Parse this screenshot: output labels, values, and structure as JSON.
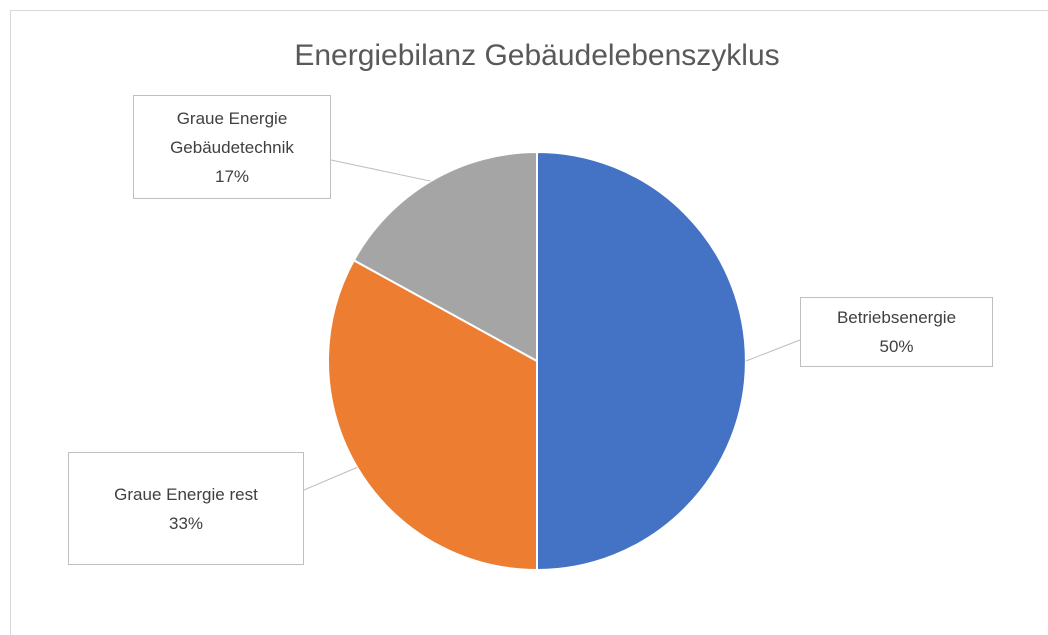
{
  "chart_data": {
    "type": "pie",
    "title": "Energiebilanz Gebäudelebenszyklus",
    "categories": [
      "Betriebsenergie",
      "Graue Energie rest",
      "Graue Energie Gebäudetechnik"
    ],
    "values": [
      50,
      33,
      17
    ],
    "value_labels": [
      "50%",
      "33%",
      "17%"
    ],
    "colors": [
      "#4472c4",
      "#ed7d31",
      "#a5a5a5"
    ]
  }
}
